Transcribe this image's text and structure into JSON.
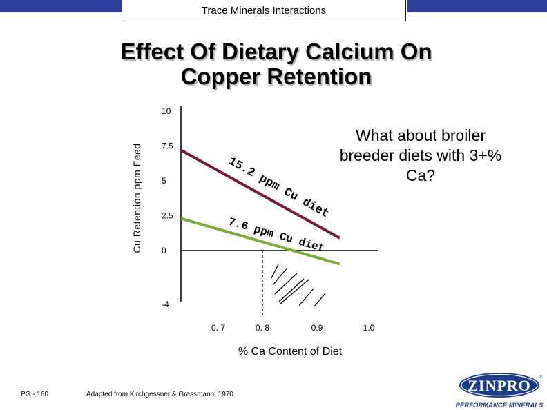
{
  "header": {
    "title": "Trace Minerals Interactions"
  },
  "title_line1": "Effect Of Dietary Calcium On",
  "title_line2": "Copper Retention",
  "note": "What about broiler breeder diets with 3+% Ca?",
  "footer": {
    "page": "PG - 160",
    "source": "Adapted from Kirchgessner & Grassmann, 1970"
  },
  "logo": {
    "name": "ZINPRO",
    "tagline": "PERFORMANCE MINERALS",
    "registered": "®"
  },
  "colors": {
    "topbar": "#2f3f9e",
    "series_15_2": "#7a1a3a",
    "series_7_6": "#7aac3a"
  },
  "chart_data": {
    "type": "line",
    "xlabel": "% Ca Content of Diet",
    "ylabel": "Cu Retention ppm Feed",
    "x_ticks": [
      "0. 7",
      "0. 8",
      "0.9",
      "1.0"
    ],
    "x_tick_values": [
      0.7,
      0.8,
      0.9,
      1.0
    ],
    "y_ticks": [
      "10",
      "7.5",
      "5",
      "2.5",
      "0",
      "-4"
    ],
    "y_tick_values": [
      10,
      7.5,
      5,
      2.5,
      0,
      -4
    ],
    "series": [
      {
        "name": "15.2 ppm Cu diet",
        "x": [
          0.7,
          0.9
        ],
        "y": [
          7.2,
          0.9
        ]
      },
      {
        "name": "7.6 ppm Cu diet",
        "x": [
          0.7,
          0.9
        ],
        "y": [
          2.3,
          -1.0
        ]
      }
    ]
  }
}
